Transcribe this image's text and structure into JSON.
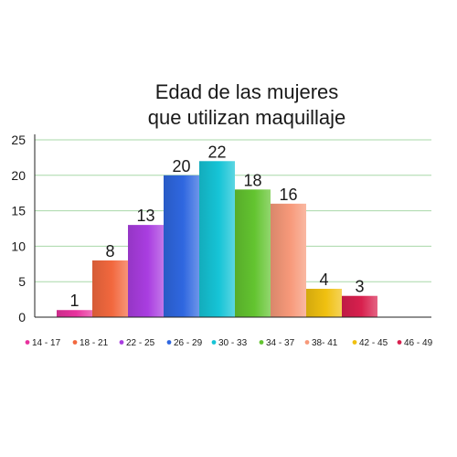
{
  "chart_data": {
    "type": "bar",
    "title_lines": [
      "Edad de las mujeres",
      "que utilizan maquillaje"
    ],
    "categories": [
      "14 - 17",
      "18 - 21",
      "22 - 25",
      "26 - 29",
      "30 - 33",
      "34 - 37",
      "38- 41",
      "42 - 45",
      "46 - 49"
    ],
    "values": [
      1,
      8,
      13,
      20,
      22,
      18,
      16,
      4,
      3
    ],
    "data_labels": [
      "1",
      "8",
      "13",
      "20",
      "22",
      "18",
      "16",
      "4",
      "3"
    ],
    "colors": [
      "#e8329e",
      "#f2683e",
      "#a93de0",
      "#2f67e0",
      "#16c4d6",
      "#63c430",
      "#f7997a",
      "#f0c010",
      "#d8204e"
    ],
    "ylim": [
      0,
      25
    ],
    "yticks": [
      "0",
      "5",
      "10",
      "15",
      "20",
      "25"
    ],
    "grid": true,
    "grid_color": "#a8d8a8",
    "legend_position": "bottom"
  }
}
